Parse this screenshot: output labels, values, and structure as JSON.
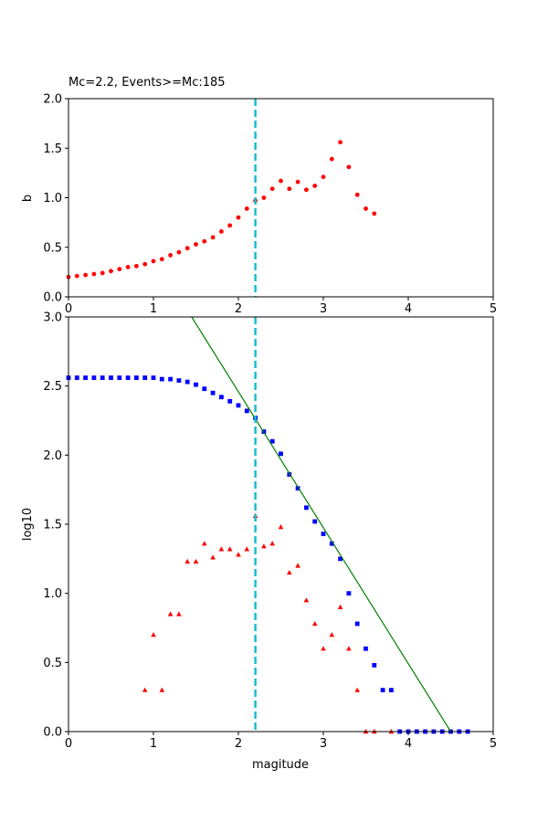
{
  "chart_data": [
    {
      "type": "scatter",
      "title": "Mc=2.2, Events>=Mc:185",
      "xlabel": "",
      "ylabel": "b",
      "xlim": [
        0,
        5
      ],
      "ylim": [
        0,
        2.0
      ],
      "xticks": [
        "0",
        "1",
        "2",
        "3",
        "4",
        "5"
      ],
      "yticks": [
        "0.0",
        "0.5",
        "1.0",
        "1.5",
        "2.0"
      ],
      "mc_line": 2.2,
      "series": [
        {
          "color": "#ff0000",
          "marker": "circle",
          "x": [
            0.0,
            0.1,
            0.2,
            0.3,
            0.4,
            0.5,
            0.6,
            0.7,
            0.8,
            0.9,
            1.0,
            1.1,
            1.2,
            1.3,
            1.4,
            1.5,
            1.6,
            1.7,
            1.8,
            1.9,
            2.0,
            2.1,
            2.2,
            2.3,
            2.4,
            2.5,
            2.6,
            2.7,
            2.8,
            2.9,
            3.0,
            3.1,
            3.2,
            3.3,
            3.4,
            3.5,
            3.6
          ],
          "y": [
            0.2,
            0.21,
            0.22,
            0.23,
            0.24,
            0.26,
            0.28,
            0.3,
            0.31,
            0.33,
            0.36,
            0.38,
            0.42,
            0.45,
            0.49,
            0.53,
            0.56,
            0.6,
            0.66,
            0.72,
            0.8,
            0.89,
            0.97,
            1.0,
            1.09,
            1.17,
            1.09,
            1.16,
            1.08,
            1.12,
            1.21,
            1.39,
            1.56,
            1.31,
            1.03,
            0.89,
            0.84
          ]
        }
      ]
    },
    {
      "type": "scatter",
      "title": "",
      "xlabel": "magitude",
      "ylabel": "log10",
      "xlim": [
        0,
        5
      ],
      "ylim": [
        0,
        3.0
      ],
      "xticks": [
        "0",
        "1",
        "2",
        "3",
        "4",
        "5"
      ],
      "yticks": [
        "0.0",
        "0.5",
        "1.0",
        "1.5",
        "2.0",
        "2.5",
        "3.0"
      ],
      "mc_line": 2.2,
      "series": [
        {
          "color": "#0000ff",
          "marker": "square",
          "x": [
            0.0,
            0.1,
            0.2,
            0.3,
            0.4,
            0.5,
            0.6,
            0.7,
            0.8,
            0.9,
            1.0,
            1.1,
            1.2,
            1.3,
            1.4,
            1.5,
            1.6,
            1.7,
            1.8,
            1.9,
            2.0,
            2.1,
            2.2,
            2.3,
            2.4,
            2.5,
            2.6,
            2.7,
            2.8,
            2.9,
            3.0,
            3.1,
            3.2,
            3.3,
            3.4,
            3.5,
            3.6,
            3.7,
            3.8,
            3.9,
            4.0,
            4.1,
            4.2,
            4.3,
            4.4,
            4.5,
            4.6,
            4.7
          ],
          "y": [
            2.56,
            2.56,
            2.56,
            2.56,
            2.56,
            2.56,
            2.56,
            2.56,
            2.56,
            2.56,
            2.56,
            2.55,
            2.55,
            2.54,
            2.53,
            2.51,
            2.48,
            2.45,
            2.42,
            2.39,
            2.36,
            2.32,
            2.27,
            2.17,
            2.1,
            2.01,
            1.86,
            1.76,
            1.62,
            1.52,
            1.43,
            1.36,
            1.25,
            1.0,
            0.78,
            0.6,
            0.48,
            0.3,
            0.3,
            0.0,
            0.0,
            0.0,
            0.0,
            0.0,
            0.0,
            0.0,
            0.0,
            0.0
          ]
        },
        {
          "color": "#ff0000",
          "marker": "triangle",
          "x": [
            0.9,
            1.0,
            1.1,
            1.2,
            1.3,
            1.4,
            1.5,
            1.6,
            1.7,
            1.8,
            1.9,
            2.0,
            2.1,
            2.2,
            2.3,
            2.4,
            2.5,
            2.6,
            2.7,
            2.8,
            2.9,
            3.0,
            3.1,
            3.2,
            3.3,
            3.4,
            3.5,
            3.6,
            3.8
          ],
          "y": [
            0.3,
            0.7,
            0.3,
            0.85,
            0.85,
            1.23,
            1.23,
            1.36,
            1.26,
            1.32,
            1.32,
            1.28,
            1.32,
            1.56,
            1.34,
            1.36,
            1.48,
            1.15,
            1.2,
            0.95,
            0.78,
            0.6,
            0.7,
            0.9,
            0.6,
            0.3,
            0.0,
            0.0,
            0.0
          ]
        }
      ],
      "fit_line": {
        "color": "#008000",
        "x": [
          1.45,
          4.5
        ],
        "y": [
          3.0,
          0.0
        ]
      }
    }
  ]
}
